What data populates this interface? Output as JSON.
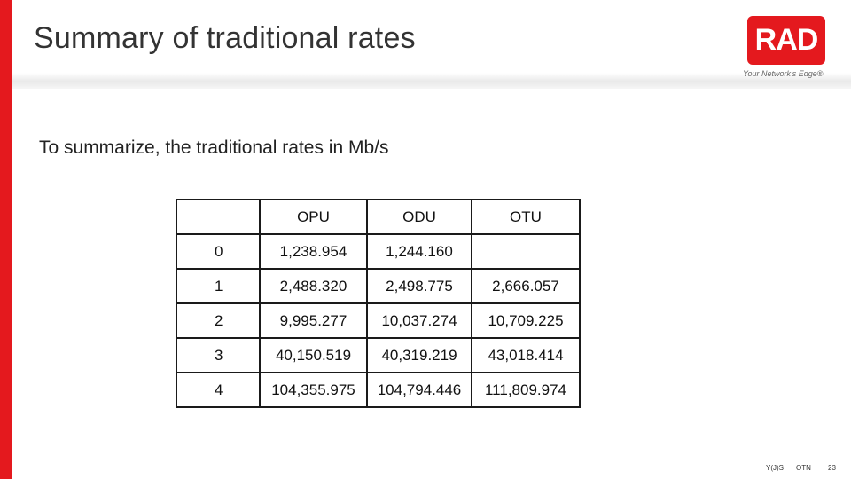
{
  "slide": {
    "title": "Summary of traditional rates",
    "subtitle": "To summarize, the traditional rates in Mb/s"
  },
  "logo": {
    "text": "RAD",
    "tagline": "Your Network's Edge®",
    "color": "#e4191e"
  },
  "table": {
    "headers": [
      "",
      "OPU",
      "ODU",
      "OTU"
    ],
    "rows": [
      [
        "0",
        "1,238.954",
        "1,244.160",
        ""
      ],
      [
        "1",
        "2,488.320",
        "2,498.775",
        "2,666.057"
      ],
      [
        "2",
        "9,995.277",
        "10,037.274",
        "10,709.225"
      ],
      [
        "3",
        "40,150.519",
        "40,319.219",
        "43,018.414"
      ],
      [
        "4",
        "104,355.975",
        "104,794.446",
        "111,809.974"
      ]
    ]
  },
  "footer": {
    "author": "Y(J)S",
    "topic": "OTN",
    "page": "23"
  },
  "colors": {
    "accent": "#e4191e",
    "title": "#333333"
  }
}
